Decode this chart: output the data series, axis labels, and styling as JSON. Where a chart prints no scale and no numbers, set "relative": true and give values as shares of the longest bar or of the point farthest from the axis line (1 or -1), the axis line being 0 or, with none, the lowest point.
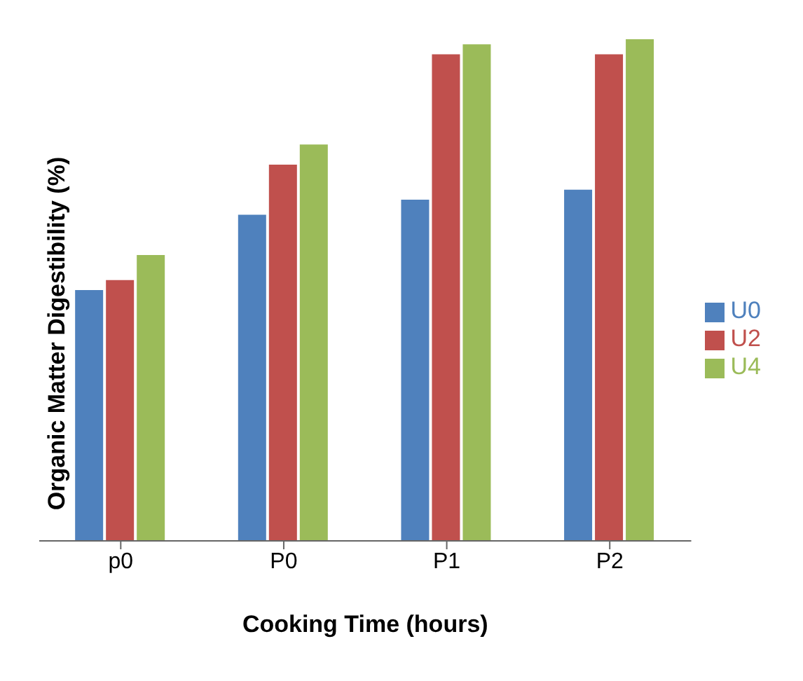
{
  "chart_data": {
    "type": "bar",
    "relative": true,
    "xlabel": "Cooking Time (hours)",
    "ylabel": "Organic Matter Digestibility (%)",
    "categories": [
      "p0",
      "P0",
      "P1",
      "P2"
    ],
    "series": [
      {
        "name": "U0",
        "color": "#4f81bd",
        "values": [
          0.5,
          0.65,
          0.68,
          0.7
        ]
      },
      {
        "name": "U2",
        "color": "#c0504d",
        "values": [
          0.52,
          0.75,
          0.97,
          0.97
        ]
      },
      {
        "name": "U4",
        "color": "#9bbb59",
        "values": [
          0.57,
          0.79,
          0.99,
          1
        ]
      }
    ],
    "legend": "right",
    "grid": false
  }
}
